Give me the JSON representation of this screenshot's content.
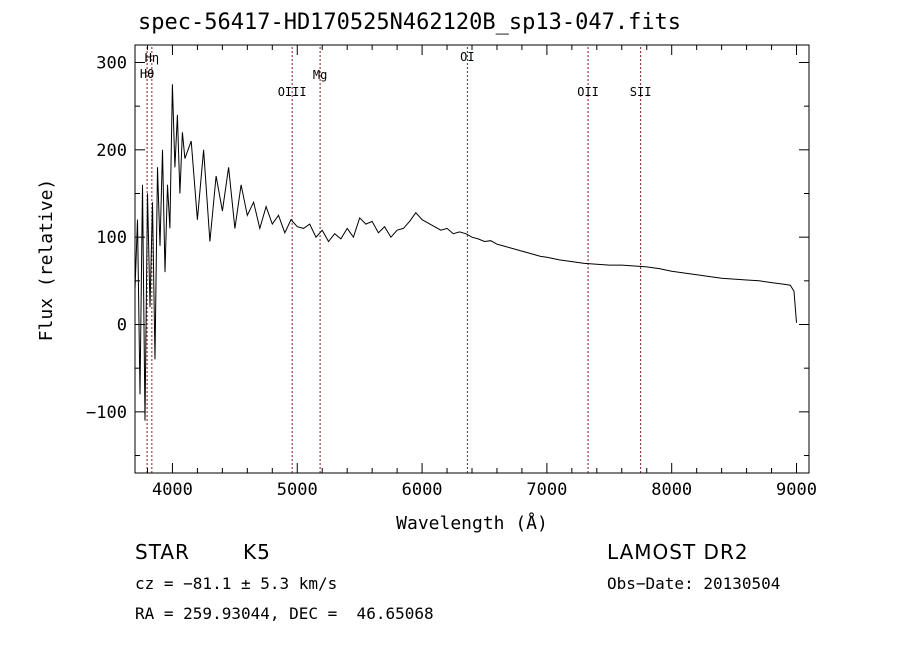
{
  "chart_data": {
    "type": "line",
    "title": "spec-56417-HD170525N462120B_sp13-047.fits",
    "xlabel": "Wavelength (Å)",
    "ylabel": "Flux (relative)",
    "xlim": [
      3700,
      9100
    ],
    "ylim": [
      -170,
      320
    ],
    "xticks": [
      4000,
      5000,
      6000,
      7000,
      8000,
      9000
    ],
    "yticks": [
      -100,
      0,
      100,
      200,
      300
    ],
    "series": [
      {
        "x": [
          3700,
          3720,
          3740,
          3760,
          3780,
          3800,
          3820,
          3840,
          3860,
          3880,
          3900,
          3920,
          3940,
          3960,
          3980,
          4000,
          4020,
          4040,
          4060,
          4080,
          4100,
          4150,
          4200,
          4250,
          4300,
          4350,
          4400,
          4450,
          4500,
          4550,
          4600,
          4650,
          4700,
          4750,
          4800,
          4850,
          4900,
          4950,
          5000,
          5050,
          5100,
          5150,
          5200,
          5250,
          5300,
          5350,
          5400,
          5450,
          5500,
          5550,
          5600,
          5650,
          5700,
          5750,
          5800,
          5850,
          5900,
          5950,
          6000,
          6050,
          6100,
          6150,
          6200,
          6250,
          6300,
          6350,
          6400,
          6450,
          6500,
          6550,
          6600,
          6650,
          6700,
          6750,
          6800,
          6850,
          6900,
          6950,
          7000,
          7100,
          7200,
          7300,
          7400,
          7500,
          7600,
          7700,
          7800,
          7900,
          8000,
          8100,
          8200,
          8300,
          8400,
          8500,
          8600,
          8700,
          8800,
          8900,
          8950,
          8980,
          9000
        ],
        "values": [
          40,
          120,
          -80,
          160,
          -110,
          150,
          20,
          140,
          -40,
          180,
          90,
          200,
          60,
          160,
          110,
          275,
          180,
          240,
          150,
          220,
          190,
          210,
          120,
          200,
          95,
          170,
          130,
          180,
          110,
          160,
          125,
          140,
          110,
          135,
          115,
          125,
          105,
          120,
          112,
          110,
          115,
          100,
          108,
          95,
          104,
          98,
          110,
          100,
          122,
          115,
          118,
          105,
          112,
          100,
          108,
          110,
          118,
          128,
          120,
          116,
          112,
          108,
          110,
          104,
          106,
          104,
          100,
          98,
          95,
          96,
          92,
          90,
          88,
          86,
          84,
          82,
          80,
          78,
          77,
          74,
          72,
          70,
          69,
          68,
          68,
          67,
          66,
          64,
          61,
          59,
          57,
          55,
          53,
          52,
          51,
          50,
          48,
          46,
          45,
          38,
          2
        ]
      }
    ],
    "lines": [
      {
        "label": "Hη",
        "x": 3835
      },
      {
        "label": "Hθ",
        "x": 3797
      },
      {
        "label": "OIII",
        "x": 4959
      },
      {
        "label": "Mg",
        "x": 5183
      },
      {
        "label": "OI",
        "x": 6363
      },
      {
        "label": "OII",
        "x": 7330
      },
      {
        "label": "SII",
        "x": 7751
      }
    ],
    "grid": false,
    "line_color": "#000000",
    "marker_color": "#8b1a1a"
  },
  "info": {
    "object_class": "STAR",
    "subclass": "K5",
    "survey": "LAMOST DR2",
    "cz": "cz = −81.1 ± 5.3 km/s",
    "obs_date": "Obs−Date: 20130504",
    "coords": "RA = 259.93044, DEC =  46.65068"
  }
}
